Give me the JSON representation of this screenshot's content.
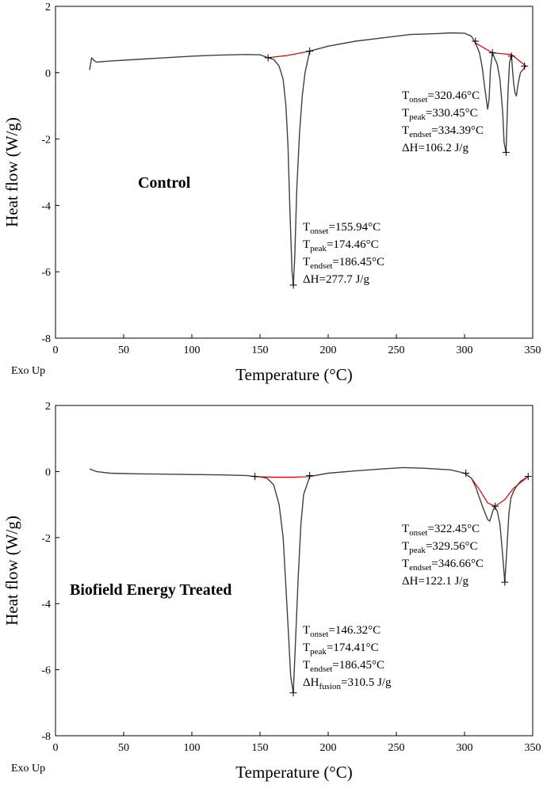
{
  "chart_data": [
    {
      "type": "line",
      "title": "Control",
      "xlabel": "Temperature (°C)",
      "ylabel": "Heat flow (W/g)",
      "corner_label": "Exo Up",
      "xlim": [
        0,
        350
      ],
      "ylim": [
        -8,
        2
      ],
      "x_ticks": [
        "0",
        "50",
        "100",
        "150",
        "200",
        "250",
        "300",
        "350"
      ],
      "y_ticks": [
        "2",
        "0",
        "-2",
        "-4",
        "-6",
        "-8"
      ],
      "grid": false,
      "series": [
        {
          "color": "#404040",
          "x": [
            25,
            26.5,
            28,
            30,
            40,
            60,
            80,
            100,
            120,
            140,
            150,
            155.94,
            160,
            164,
            167,
            169,
            170.5,
            172,
            173.5,
            174.46,
            175.5,
            177,
            179,
            181,
            183,
            186.45,
            200,
            220,
            240,
            260,
            280,
            290,
            300,
            305,
            308,
            311,
            313,
            315,
            317,
            318,
            319,
            320.46,
            322,
            324,
            326,
            328,
            329,
            330.45,
            331,
            332,
            333,
            334.39,
            335,
            336,
            337,
            338,
            339.5,
            341,
            343,
            345
          ],
          "y": [
            0.08,
            0.45,
            0.38,
            0.32,
            0.35,
            0.4,
            0.45,
            0.5,
            0.53,
            0.55,
            0.54,
            0.45,
            0.4,
            0.2,
            -0.2,
            -1.0,
            -2.2,
            -4.2,
            -6.0,
            -6.4,
            -5.5,
            -3.5,
            -1.8,
            -0.7,
            0.0,
            0.65,
            0.8,
            0.95,
            1.05,
            1.15,
            1.18,
            1.2,
            1.19,
            1.1,
            0.9,
            0.6,
            0.15,
            -0.5,
            -1.1,
            -0.8,
            0.1,
            0.6,
            0.45,
            0.25,
            -0.2,
            -1.2,
            -2.1,
            -2.4,
            -1.7,
            -0.5,
            0.3,
            0.55,
            0.2,
            -0.3,
            -0.6,
            -0.7,
            -0.3,
            0.0,
            0.1,
            0.2
          ]
        },
        {
          "color": "#e00000",
          "x": [
            155.94,
            170,
            186.45
          ],
          "y": [
            0.45,
            0.52,
            0.65
          ]
        },
        {
          "color": "#e00000",
          "x": [
            308,
            320.46,
            334.39,
            345
          ],
          "y": [
            0.9,
            0.6,
            0.55,
            0.2
          ]
        }
      ],
      "markers": [
        {
          "x": 155.94,
          "y": 0.45
        },
        {
          "x": 174.46,
          "y": -6.4
        },
        {
          "x": 186.45,
          "y": 0.65
        },
        {
          "x": 308,
          "y": 0.95
        },
        {
          "x": 320.46,
          "y": 0.6
        },
        {
          "x": 330.45,
          "y": -2.4
        },
        {
          "x": 334.39,
          "y": 0.5
        },
        {
          "x": 344,
          "y": 0.2
        }
      ],
      "annotations": [
        {
          "lines": [
            {
              "main": "T",
              "sub": "onset",
              "rest": "=155.94°C"
            },
            {
              "main": "T",
              "sub": "peak",
              "rest": "=174.46°C"
            },
            {
              "main": "T",
              "sub": "endset",
              "rest": "=186.45°C"
            },
            {
              "main": "ΔH=277.7 J/g",
              "sub": "",
              "rest": ""
            }
          ]
        },
        {
          "lines": [
            {
              "main": "T",
              "sub": "onset",
              "rest": "=320.46°C"
            },
            {
              "main": "T",
              "sub": "peak",
              "rest": "=330.45°C"
            },
            {
              "main": "T",
              "sub": "endset",
              "rest": "=334.39°C"
            },
            {
              "main": "ΔH=106.2 J/g",
              "sub": "",
              "rest": ""
            }
          ]
        }
      ]
    },
    {
      "type": "line",
      "title": "Biofield Energy Treated",
      "xlabel": "Temperature (°C)",
      "ylabel": "Heat flow (W/g)",
      "corner_label": "Exo Up",
      "xlim": [
        0,
        350
      ],
      "ylim": [
        -8,
        2
      ],
      "x_ticks": [
        "0",
        "50",
        "100",
        "150",
        "200",
        "250",
        "300",
        "350"
      ],
      "y_ticks": [
        "2",
        "0",
        "-2",
        "-4",
        "-6",
        "-8"
      ],
      "grid": false,
      "series": [
        {
          "color": "#404040",
          "x": [
            25,
            30,
            40,
            60,
            80,
            100,
            120,
            140,
            146.32,
            150,
            155,
            160,
            164,
            167,
            169,
            171,
            172.5,
            174.41,
            176,
            178,
            180,
            182,
            186.45,
            200,
            220,
            240,
            255,
            270,
            290,
            300,
            305,
            308,
            311,
            314,
            317,
            318.5,
            320,
            322,
            324,
            326,
            327.5,
            329.56,
            331,
            332.5,
            334,
            336,
            338,
            341,
            346.66
          ],
          "y": [
            0.08,
            0.0,
            -0.05,
            -0.07,
            -0.08,
            -0.09,
            -0.1,
            -0.12,
            -0.15,
            -0.16,
            -0.2,
            -0.4,
            -1.0,
            -2.0,
            -3.5,
            -5.0,
            -6.2,
            -6.7,
            -5.2,
            -3.2,
            -1.6,
            -0.7,
            -0.15,
            -0.05,
            0.02,
            0.08,
            0.12,
            0.1,
            0.05,
            -0.05,
            -0.2,
            -0.45,
            -0.8,
            -1.15,
            -1.45,
            -1.5,
            -1.3,
            -1.05,
            -1.2,
            -1.6,
            -2.3,
            -3.35,
            -2.4,
            -1.3,
            -0.8,
            -0.6,
            -0.45,
            -0.3,
            -0.15
          ]
        },
        {
          "color": "#e00000",
          "x": [
            146.32,
            160,
            174.41,
            186.45
          ],
          "y": [
            -0.15,
            -0.17,
            -0.17,
            -0.15
          ]
        },
        {
          "color": "#e00000",
          "x": [
            305,
            311,
            317,
            322.45,
            329.56,
            336,
            346.66
          ],
          "y": [
            -0.2,
            -0.55,
            -0.95,
            -1.05,
            -0.85,
            -0.5,
            -0.15
          ]
        }
      ],
      "markers": [
        {
          "x": 146.32,
          "y": -0.15
        },
        {
          "x": 174.41,
          "y": -6.7
        },
        {
          "x": 186.45,
          "y": -0.12
        },
        {
          "x": 301,
          "y": -0.05
        },
        {
          "x": 322.45,
          "y": -1.05
        },
        {
          "x": 329.56,
          "y": -3.35
        },
        {
          "x": 346.66,
          "y": -0.15
        }
      ],
      "annotations": [
        {
          "lines": [
            {
              "main": "T",
              "sub": "onset",
              "rest": "=146.32°C"
            },
            {
              "main": "T",
              "sub": "peak",
              "rest": "=174.41°C"
            },
            {
              "main": "T",
              "sub": "endset",
              "rest": "=186.45°C"
            },
            {
              "main": "ΔH",
              "sub": "fusion",
              "rest": "=310.5 J/g"
            }
          ]
        },
        {
          "lines": [
            {
              "main": "T",
              "sub": "onset",
              "rest": "=322.45°C"
            },
            {
              "main": "T",
              "sub": "peak",
              "rest": "=329.56°C"
            },
            {
              "main": "T",
              "sub": "endset",
              "rest": "=346.66°C"
            },
            {
              "main": "ΔH=122.1 J/g",
              "sub": "",
              "rest": ""
            }
          ]
        }
      ]
    }
  ]
}
